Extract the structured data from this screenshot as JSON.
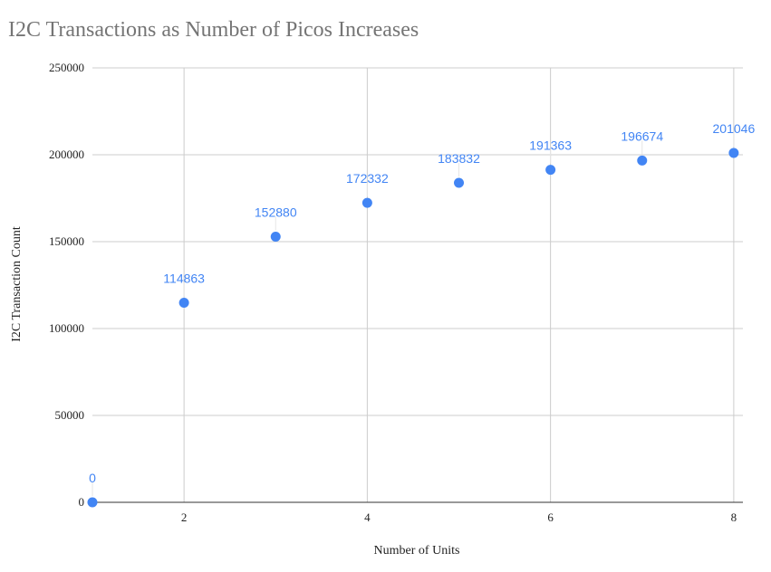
{
  "chart_data": {
    "type": "scatter",
    "title": "I2C Transactions as Number of Picos Increases",
    "xlabel": "Number of Units",
    "ylabel": "I2C Transaction Count",
    "x": [
      1,
      2,
      3,
      4,
      5,
      6,
      7,
      8
    ],
    "y": [
      0,
      114863,
      152880,
      172332,
      183832,
      191363,
      196674,
      201046
    ],
    "data_labels": [
      "0",
      "114863",
      "152880",
      "172332",
      "183832",
      "191363",
      "196674",
      "201046"
    ],
    "xlim": [
      1,
      8
    ],
    "ylim": [
      0,
      250000
    ],
    "x_ticks": [
      2,
      4,
      6,
      8
    ],
    "x_tick_labels": [
      "2",
      "4",
      "6",
      "8"
    ],
    "y_ticks": [
      0,
      50000,
      100000,
      150000,
      200000,
      250000
    ],
    "y_tick_labels": [
      "0",
      "50000",
      "100000",
      "150000",
      "200000",
      "250000"
    ],
    "grid": true,
    "legend": "none",
    "colors": {
      "point": "#4285f4",
      "label": "#4285f4",
      "grid": "#cccccc",
      "title": "#757575"
    }
  }
}
